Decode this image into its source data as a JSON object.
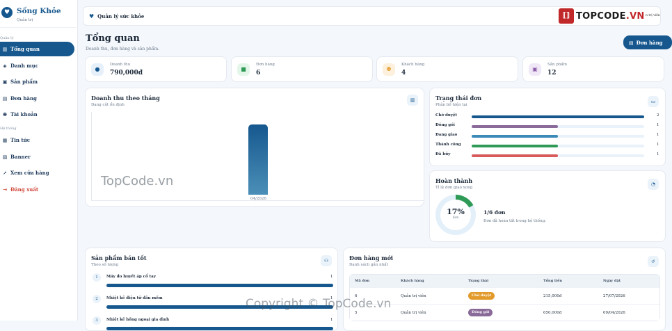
{
  "brand": {
    "name": "Sống Khỏe",
    "sub": "Quản trị"
  },
  "sidebar": {
    "sections": [
      "Quản lý",
      "Hệ thống"
    ],
    "items": [
      {
        "icon": "chart-icon",
        "glyph": "▥",
        "label": "Tổng quan",
        "active": true
      },
      {
        "icon": "layers-icon",
        "glyph": "◈",
        "label": "Danh mục"
      },
      {
        "icon": "box-icon",
        "glyph": "▣",
        "label": "Sản phẩm"
      },
      {
        "icon": "receipt-icon",
        "glyph": "▤",
        "label": "Đơn hàng"
      },
      {
        "icon": "users-icon",
        "glyph": "☻",
        "label": "Tài khoản"
      },
      {
        "icon": "news-icon",
        "glyph": "▦",
        "label": "Tin tức"
      },
      {
        "icon": "image-icon",
        "glyph": "▧",
        "label": "Banner"
      },
      {
        "icon": "external-link-icon",
        "glyph": "↗",
        "label": "Xem cửa hàng"
      },
      {
        "icon": "logout-icon",
        "glyph": "⇥",
        "label": "Đăng xuất",
        "danger": true
      }
    ]
  },
  "topbar": {
    "title": "Quản lý sức khỏe",
    "user": "n trị viên",
    "watermark_logo": {
      "pre": "TOP",
      "mid": "CODE",
      "post": ".VN"
    }
  },
  "header": {
    "title": "Tổng quan",
    "subtitle": "Doanh thu, đơn hàng và sản phẩm.",
    "orders_button": "Đơn hàng"
  },
  "stats": [
    {
      "icon": "coins-icon",
      "glyph": "●",
      "label": "Doanh thu",
      "value": "790,000đ",
      "bg": "#e6f0fa",
      "fg": "#16588e"
    },
    {
      "icon": "bag-icon",
      "glyph": "■",
      "label": "Đơn hàng",
      "value": "6",
      "bg": "#e4f6ea",
      "fg": "#2e9a56"
    },
    {
      "icon": "people-icon",
      "glyph": "☻",
      "label": "Khách hàng",
      "value": "4",
      "bg": "#fdf0dc",
      "fg": "#e29a2b"
    },
    {
      "icon": "product-icon",
      "glyph": "▣",
      "label": "Sản phẩm",
      "value": "12",
      "bg": "#f1e8f7",
      "fg": "#8a5ca8"
    }
  ],
  "revenue": {
    "title": "Doanh thu theo tháng",
    "subtitle": "Dạng cột ổn định"
  },
  "chart_data": {
    "type": "bar",
    "categories": [
      "04/2026"
    ],
    "values": [
      790000
    ],
    "title": "Doanh thu theo tháng",
    "xlabel": "",
    "ylabel": "",
    "ylim": [
      0,
      860000
    ],
    "grid": false
  },
  "status": {
    "title": "Trạng thái đơn",
    "subtitle": "Phân bổ hiện tại",
    "max": 2,
    "rows": [
      {
        "label": "Chờ duyệt",
        "count": 2,
        "color": "#16588e"
      },
      {
        "label": "Đóng gói",
        "count": 1,
        "color": "#8a6a99"
      },
      {
        "label": "Đang giao",
        "count": 1,
        "color": "#3b8ab8"
      },
      {
        "label": "Thành công",
        "count": 1,
        "color": "#2e9a56"
      },
      {
        "label": "Đã hủy",
        "count": 1,
        "color": "#d85a5a"
      }
    ]
  },
  "completion": {
    "title": "Hoàn thành",
    "subtitle": "Tỉ lệ đơn giao xong",
    "percent": 17,
    "percent_label": "17%",
    "donut_label": "đơn",
    "main": "1/6 đơn",
    "sub": "Đơn đã hoàn tất trong hệ thống."
  },
  "bestsellers": {
    "title": "Sản phẩm bán tốt",
    "subtitle": "Theo số lượng",
    "items": [
      {
        "rank": "1",
        "name": "Máy đo huyết áp cổ tay",
        "qty": "1",
        "share": 1
      },
      {
        "rank": "2",
        "name": "Nhiệt kế điện tử đầu mềm",
        "qty": "1",
        "share": 1
      },
      {
        "rank": "3",
        "name": "Nhiệt kế hồng ngoại gia đình",
        "qty": "1",
        "share": 1
      }
    ]
  },
  "orders": {
    "title": "Đơn hàng mới",
    "subtitle": "Danh sách gần nhất",
    "headers": [
      "Mã đơn",
      "Khách hàng",
      "Trạng thái",
      "Tổng tiền",
      "Ngày đặt"
    ],
    "rows": [
      {
        "id": "6",
        "customer": "Quản trị viên",
        "status": "Chờ duyệt",
        "status_color": "#e29a2b",
        "total": "215,000đ",
        "date": "27/07/2026"
      },
      {
        "id": "5",
        "customer": "Quản trị viên",
        "status": "Đóng gói",
        "status_color": "#8a6a99",
        "total": "650,000đ",
        "date": "09/04/2026"
      }
    ]
  },
  "watermarks": [
    "TopCode.vn",
    "Copyright © TopCode.vn"
  ]
}
